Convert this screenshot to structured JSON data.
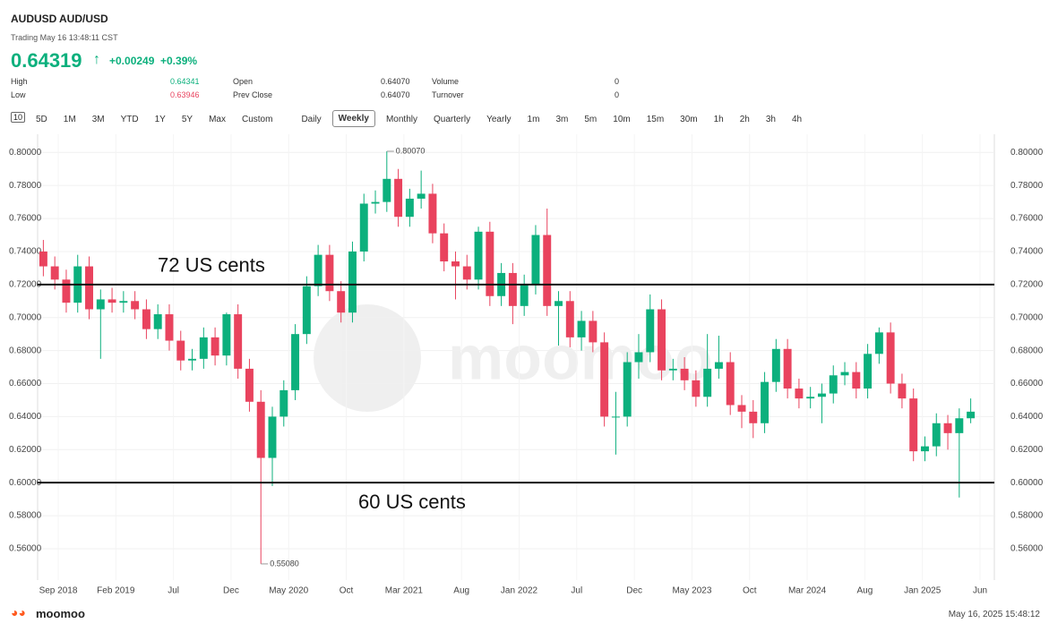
{
  "header": {
    "symbol": "AUDUSD",
    "name": "AUD/USD",
    "status": "Trading May 16 13:48:11 CST",
    "price": "0.64319",
    "change": "+0.00249",
    "change_pct": "+0.39%",
    "stats": [
      [
        "High",
        "0.64341",
        "Open",
        "0.64070",
        "Volume",
        "0"
      ],
      [
        "Low",
        "0.63946",
        "Prev Close",
        "0.64070",
        "Turnover",
        "0"
      ]
    ]
  },
  "tabs": [
    "5D",
    "1M",
    "3M",
    "YTD",
    "1Y",
    "5Y",
    "Max",
    "Custom",
    "Daily",
    "Weekly",
    "Monthly",
    "Quarterly",
    "Yearly",
    "1m",
    "3m",
    "5m",
    "10m",
    "15m",
    "30m",
    "1h",
    "2h",
    "3h",
    "4h"
  ],
  "active_tab": "Weekly",
  "chart_data": {
    "type": "candlestick",
    "up_color": "#0cb07d",
    "down_color": "#e9435e",
    "x_labels": [
      "Sep 2018",
      "Feb 2019",
      "Jul",
      "Dec",
      "May 2020",
      "Oct",
      "Mar 2021",
      "Aug",
      "Jan 2022",
      "Jul",
      "Dec",
      "May 2023",
      "Oct",
      "Mar 2024",
      "Aug",
      "Jan 2025",
      "Jun"
    ],
    "open": [
      0.74,
      0.731,
      0.723,
      0.709,
      0.731,
      0.705,
      0.711,
      0.709,
      0.71,
      0.705,
      0.693,
      0.702,
      0.686,
      0.674,
      0.675,
      0.688,
      0.677,
      0.702,
      0.669,
      0.649,
      0.615,
      0.64,
      0.656,
      0.69,
      0.719,
      0.738,
      0.716,
      0.703,
      0.74,
      0.769,
      0.77,
      0.784,
      0.761,
      0.772,
      0.775,
      0.751,
      0.734,
      0.731,
      0.723,
      0.752,
      0.713,
      0.727,
      0.707,
      0.72,
      0.75,
      0.707,
      0.71,
      0.688,
      0.698,
      0.685,
      0.64,
      0.64,
      0.673,
      0.679,
      0.705,
      0.668,
      0.669,
      0.662,
      0.652,
      0.669,
      0.673,
      0.647,
      0.643,
      0.636,
      0.661,
      0.681,
      0.657,
      0.651,
      0.652,
      0.654,
      0.665,
      0.667,
      0.657,
      0.678,
      0.691,
      0.66,
      0.651,
      0.619,
      0.622,
      0.636,
      0.63,
      0.639
    ],
    "high": [
      0.747,
      0.737,
      0.729,
      0.738,
      0.737,
      0.717,
      0.718,
      0.716,
      0.716,
      0.711,
      0.708,
      0.708,
      0.692,
      0.681,
      0.694,
      0.694,
      0.703,
      0.708,
      0.675,
      0.656,
      0.646,
      0.662,
      0.696,
      0.725,
      0.744,
      0.744,
      0.722,
      0.746,
      0.775,
      0.777,
      0.8007,
      0.79,
      0.778,
      0.789,
      0.781,
      0.757,
      0.74,
      0.738,
      0.755,
      0.758,
      0.733,
      0.733,
      0.726,
      0.756,
      0.766,
      0.716,
      0.716,
      0.704,
      0.704,
      0.691,
      0.655,
      0.679,
      0.69,
      0.714,
      0.711,
      0.675,
      0.676,
      0.668,
      0.69,
      0.689,
      0.679,
      0.653,
      0.65,
      0.667,
      0.687,
      0.687,
      0.663,
      0.658,
      0.66,
      0.671,
      0.673,
      0.673,
      0.684,
      0.694,
      0.697,
      0.666,
      0.657,
      0.628,
      0.642,
      0.641,
      0.645,
      0.651
    ],
    "low": [
      0.725,
      0.717,
      0.703,
      0.703,
      0.699,
      0.675,
      0.703,
      0.703,
      0.699,
      0.687,
      0.687,
      0.68,
      0.668,
      0.668,
      0.669,
      0.671,
      0.671,
      0.663,
      0.643,
      0.5508,
      0.598,
      0.634,
      0.65,
      0.684,
      0.713,
      0.71,
      0.697,
      0.697,
      0.734,
      0.763,
      0.764,
      0.755,
      0.755,
      0.766,
      0.745,
      0.728,
      0.711,
      0.717,
      0.717,
      0.707,
      0.707,
      0.696,
      0.701,
      0.714,
      0.701,
      0.683,
      0.682,
      0.68,
      0.679,
      0.634,
      0.617,
      0.634,
      0.663,
      0.673,
      0.662,
      0.662,
      0.656,
      0.646,
      0.646,
      0.663,
      0.641,
      0.633,
      0.627,
      0.63,
      0.655,
      0.651,
      0.645,
      0.645,
      0.636,
      0.648,
      0.659,
      0.651,
      0.651,
      0.672,
      0.654,
      0.645,
      0.613,
      0.613,
      0.616,
      0.62,
      0.591,
      0.636
    ],
    "close": [
      0.731,
      0.723,
      0.709,
      0.731,
      0.705,
      0.711,
      0.709,
      0.71,
      0.705,
      0.693,
      0.702,
      0.686,
      0.674,
      0.675,
      0.688,
      0.677,
      0.702,
      0.669,
      0.649,
      0.615,
      0.64,
      0.656,
      0.69,
      0.719,
      0.738,
      0.716,
      0.703,
      0.74,
      0.769,
      0.77,
      0.784,
      0.761,
      0.772,
      0.775,
      0.751,
      0.734,
      0.731,
      0.723,
      0.752,
      0.713,
      0.727,
      0.707,
      0.72,
      0.75,
      0.707,
      0.71,
      0.688,
      0.698,
      0.685,
      0.64,
      0.64,
      0.673,
      0.679,
      0.705,
      0.668,
      0.669,
      0.662,
      0.652,
      0.669,
      0.673,
      0.647,
      0.643,
      0.636,
      0.661,
      0.681,
      0.657,
      0.651,
      0.652,
      0.654,
      0.665,
      0.667,
      0.657,
      0.678,
      0.691,
      0.66,
      0.651,
      0.619,
      0.622,
      0.636,
      0.63,
      0.639,
      0.643
    ],
    "max_label": "0.80070",
    "min_label": "0.55080",
    "ylim": [
      0.541,
      0.811
    ],
    "yticks": [
      {
        "value": 0.56,
        "label": "0.56000"
      },
      {
        "value": 0.58,
        "label": "0.58000"
      },
      {
        "value": 0.6,
        "label": "0.60000"
      },
      {
        "value": 0.62,
        "label": "0.62000"
      },
      {
        "value": 0.64,
        "label": "0.64000"
      },
      {
        "value": 0.66,
        "label": "0.66000"
      },
      {
        "value": 0.68,
        "label": "0.68000"
      },
      {
        "value": 0.7,
        "label": "0.70000"
      },
      {
        "value": 0.72,
        "label": "0.72000"
      },
      {
        "value": 0.74,
        "label": "0.74000"
      },
      {
        "value": 0.76,
        "label": "0.76000"
      },
      {
        "value": 0.78,
        "label": "0.78000"
      },
      {
        "value": 0.8,
        "label": "0.80000"
      }
    ],
    "annotations": [
      {
        "value": 0.72,
        "label": "72 US cents"
      },
      {
        "value": 0.6,
        "label": "60 US cents"
      }
    ],
    "grid": true
  },
  "footer": {
    "brand": "moomoo",
    "timestamp": "May 16, 2025 15:48:12"
  }
}
